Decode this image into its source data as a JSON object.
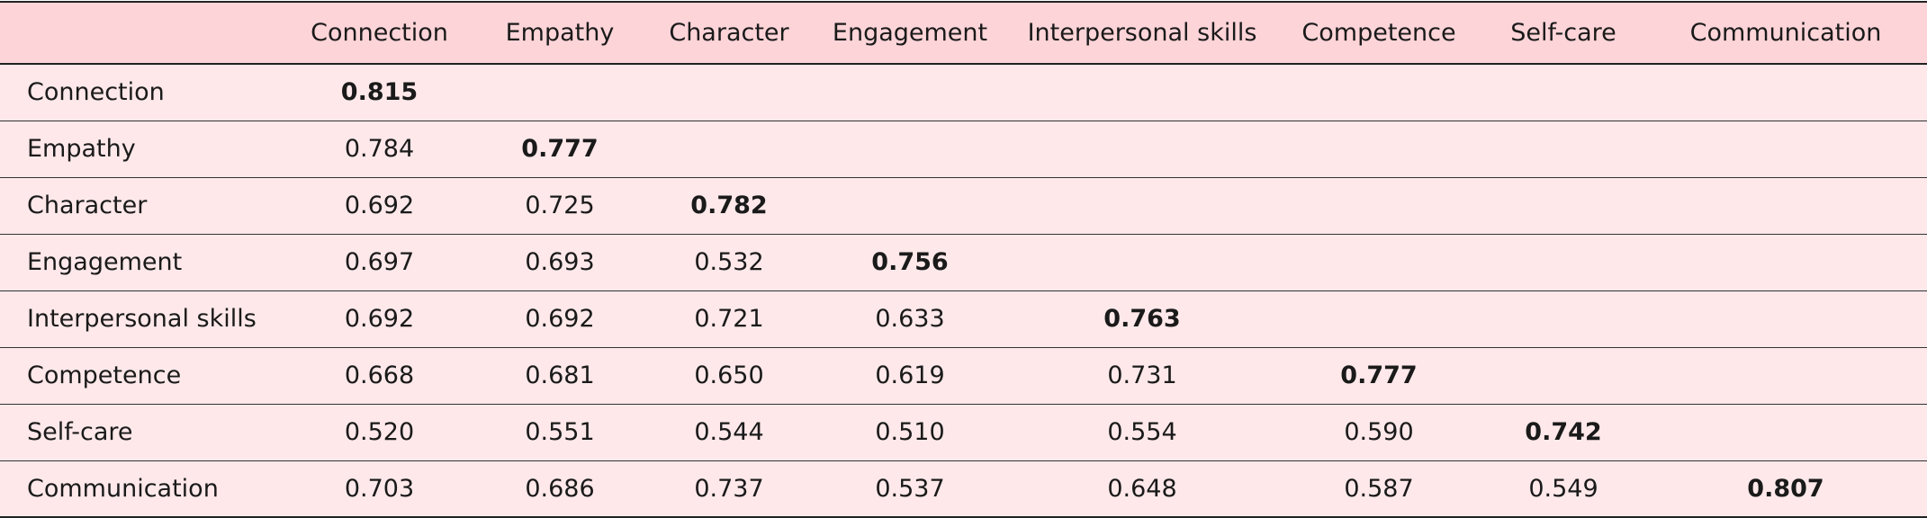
{
  "table": {
    "columns": [
      "",
      "Connection",
      "Empathy",
      "Character",
      "Engagement",
      "Interpersonal skills",
      "Competence",
      "Self-care",
      "Communication"
    ],
    "rows": [
      {
        "label": "Connection",
        "cells": [
          "0.815",
          "",
          "",
          "",
          "",
          "",
          "",
          ""
        ],
        "diag": 0
      },
      {
        "label": "Empathy",
        "cells": [
          "0.784",
          "0.777",
          "",
          "",
          "",
          "",
          "",
          ""
        ],
        "diag": 1
      },
      {
        "label": "Character",
        "cells": [
          "0.692",
          "0.725",
          "0.782",
          "",
          "",
          "",
          "",
          ""
        ],
        "diag": 2
      },
      {
        "label": "Engagement",
        "cells": [
          "0.697",
          "0.693",
          "0.532",
          "0.756",
          "",
          "",
          "",
          ""
        ],
        "diag": 3
      },
      {
        "label": "Interpersonal skills",
        "cells": [
          "0.692",
          "0.692",
          "0.721",
          "0.633",
          "0.763",
          "",
          "",
          ""
        ],
        "diag": 4
      },
      {
        "label": "Competence",
        "cells": [
          "0.668",
          "0.681",
          "0.650",
          "0.619",
          "0.731",
          "0.777",
          "",
          ""
        ],
        "diag": 5
      },
      {
        "label": "Self-care",
        "cells": [
          "0.520",
          "0.551",
          "0.544",
          "0.510",
          "0.554",
          "0.590",
          "0.742",
          ""
        ],
        "diag": 6
      },
      {
        "label": "Communication",
        "cells": [
          "0.703",
          "0.686",
          "0.737",
          "0.537",
          "0.648",
          "0.587",
          "0.549",
          "0.807"
        ],
        "diag": 7
      }
    ],
    "colors": {
      "header_bg": "#fdd4d8",
      "body_bg": "#fee8ea",
      "rule": "#222222"
    }
  }
}
